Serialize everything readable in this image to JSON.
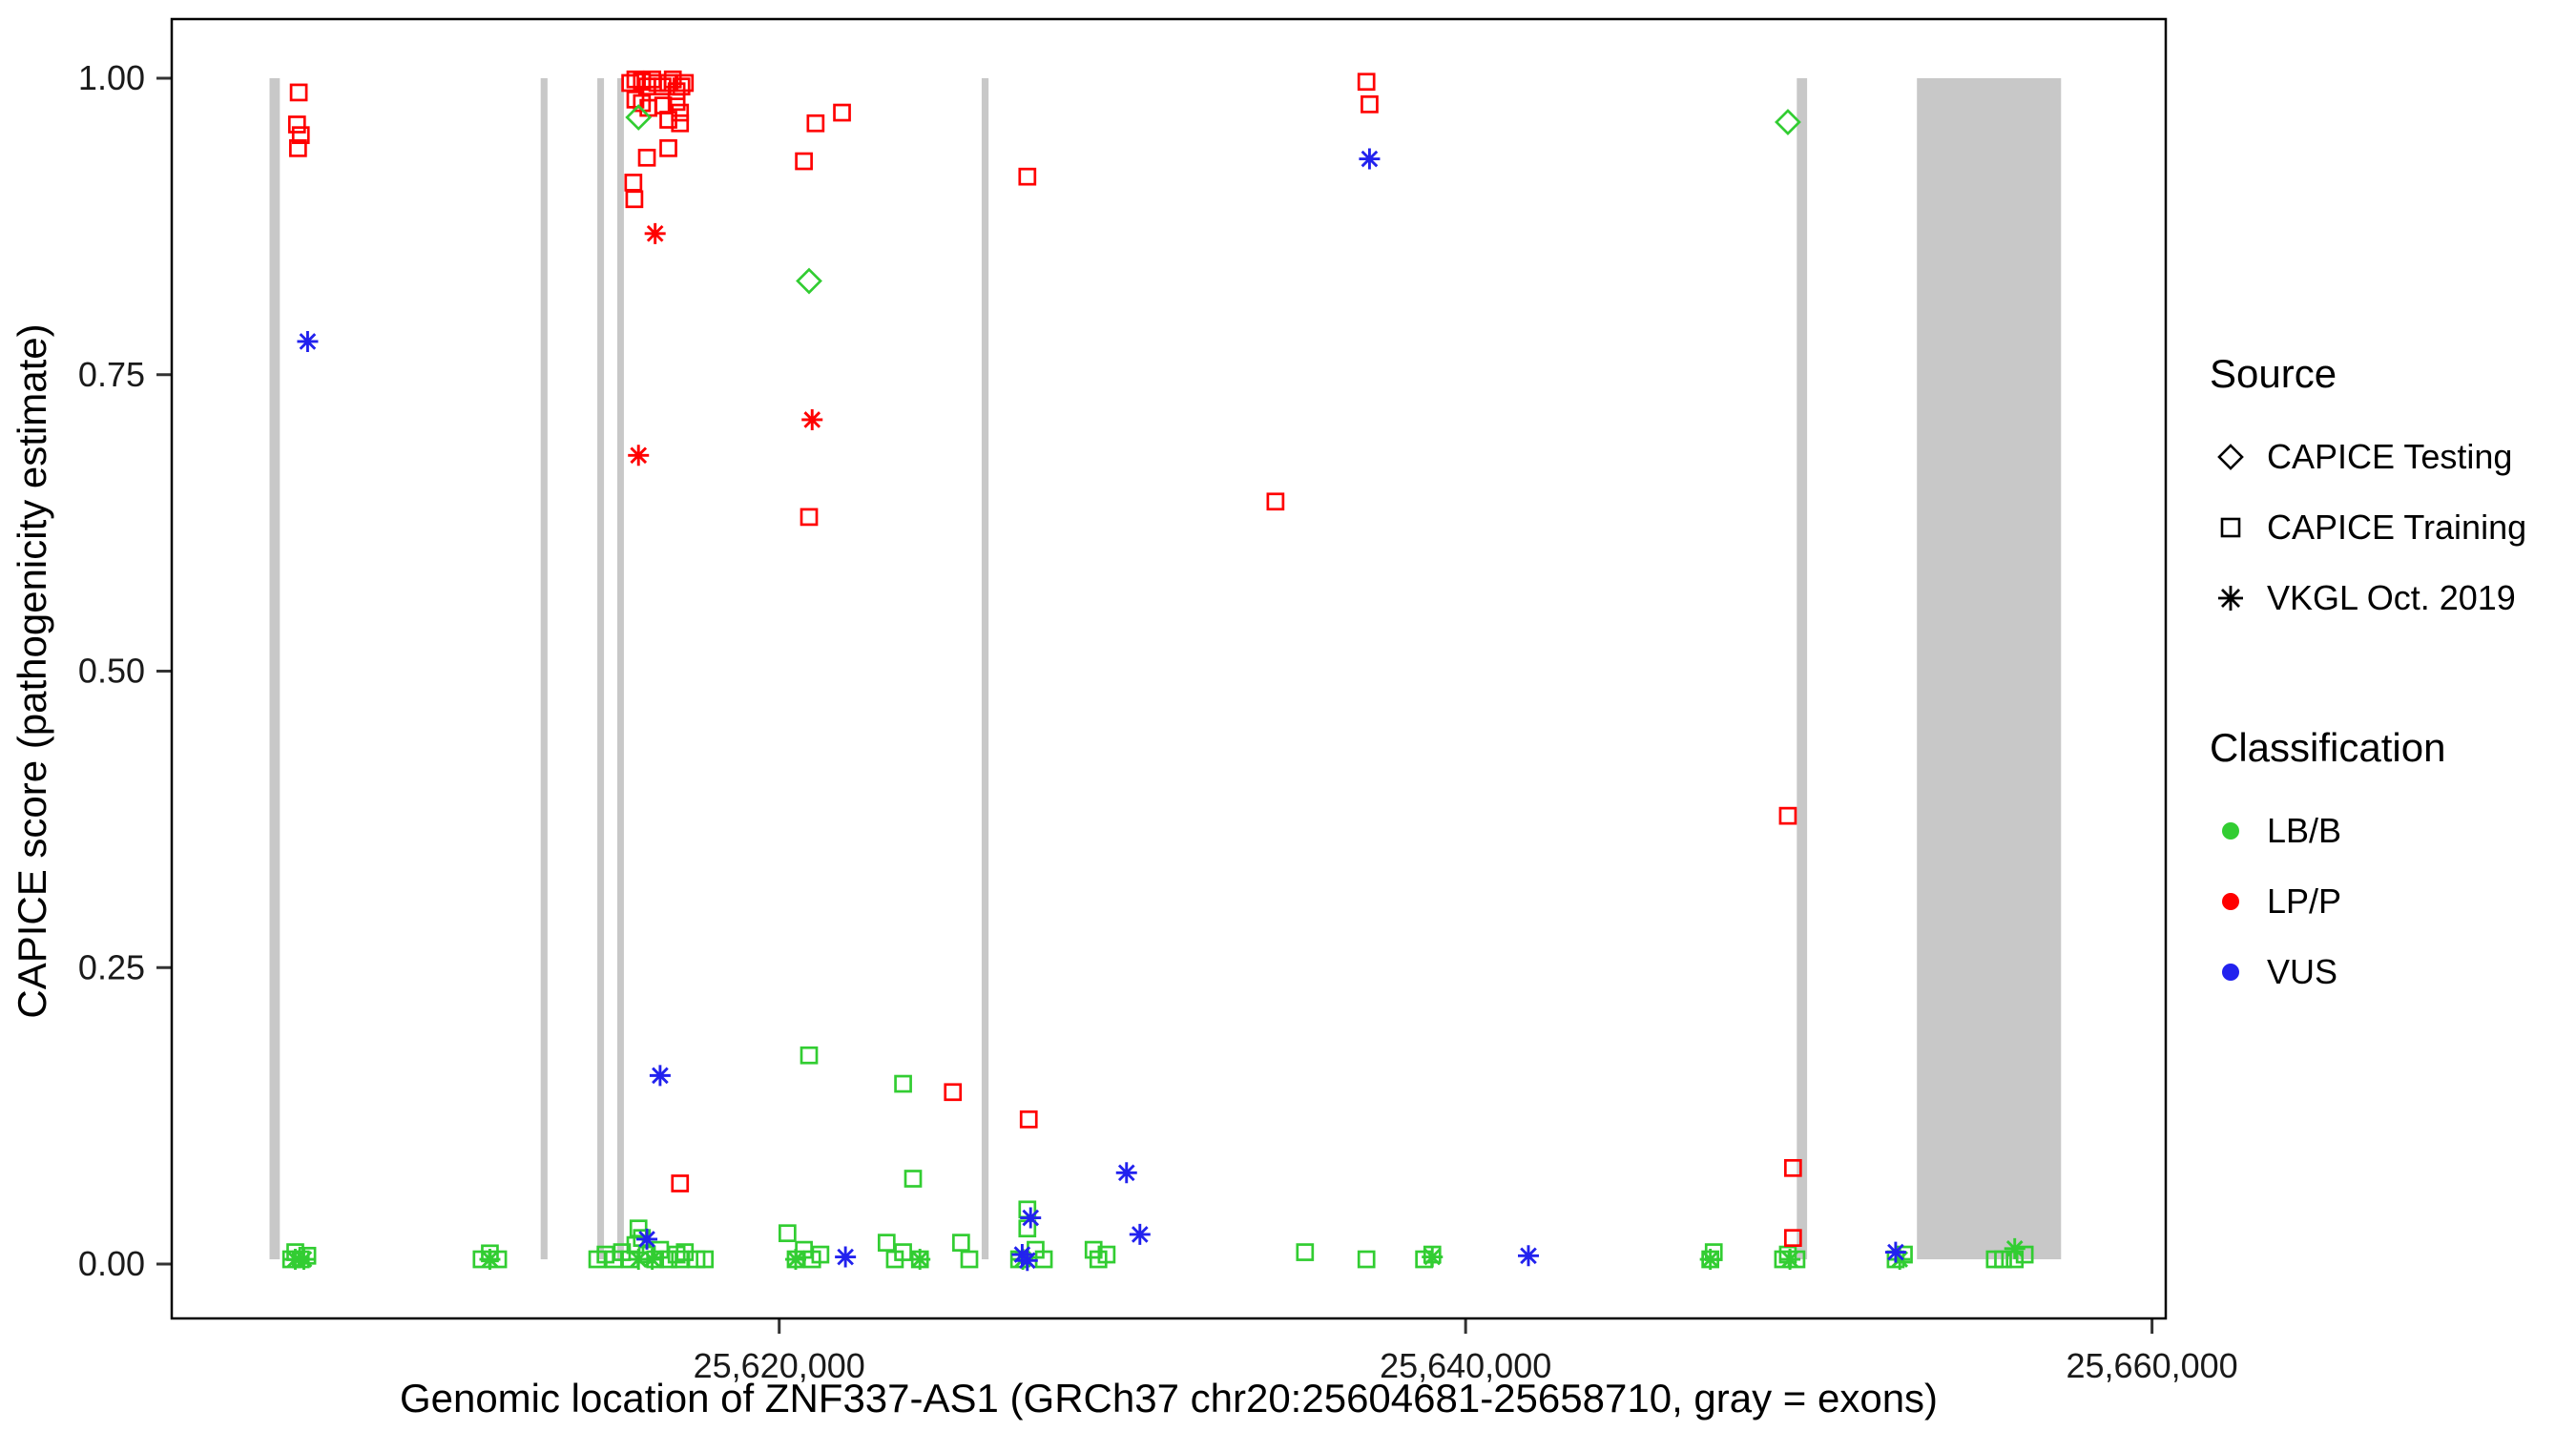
{
  "chart_data": {
    "type": "scatter",
    "title": "",
    "xlabel": "Genomic location of ZNF337-AS1 (GRCh37 chr20:25604681-25658710, gray = exons)",
    "ylabel": "CAPICE score (pathogenicity estimate)",
    "xlim": [
      25602300,
      25660400
    ],
    "ylim": [
      0,
      1
    ],
    "grid": "off",
    "legend_position": "right",
    "x_ticks": [
      {
        "value": 25620000,
        "label": "25,620,000"
      },
      {
        "value": 25640000,
        "label": "25,640,000"
      },
      {
        "value": 25660000,
        "label": "25,660,000"
      }
    ],
    "y_ticks": [
      {
        "value": 0.0,
        "label": "0.00"
      },
      {
        "value": 0.25,
        "label": "0.25"
      },
      {
        "value": 0.5,
        "label": "0.50"
      },
      {
        "value": 0.75,
        "label": "0.75"
      },
      {
        "value": 1.0,
        "label": "1.00"
      }
    ],
    "exon_color": "#C8C8C8",
    "exons": [
      [
        25605150,
        25605450
      ],
      [
        25613050,
        25613250
      ],
      [
        25614700,
        25614850
      ],
      [
        25615280,
        25615430
      ],
      [
        25625900,
        25626100
      ],
      [
        25649650,
        25649950
      ],
      [
        25653150,
        25657350
      ]
    ],
    "series": [
      {
        "name": "LB/B - CAPICE Training",
        "source": "CAPICE Training",
        "classification": "LB/B",
        "marker": "square-open",
        "color": "#32CD32",
        "points": [
          [
            25605780,
            0.004
          ],
          [
            25605900,
            0.01
          ],
          [
            25606060,
            0.004
          ],
          [
            25606250,
            0.007
          ],
          [
            25611330,
            0.004
          ],
          [
            25611570,
            0.009
          ],
          [
            25611810,
            0.004
          ],
          [
            25614700,
            0.004
          ],
          [
            25614940,
            0.008
          ],
          [
            25615180,
            0.004
          ],
          [
            25615420,
            0.01
          ],
          [
            25615660,
            0.004
          ],
          [
            25615810,
            0.016
          ],
          [
            25615900,
            0.03
          ],
          [
            25616000,
            0.022
          ],
          [
            25616145,
            0.008
          ],
          [
            25616385,
            0.004
          ],
          [
            25616530,
            0.012
          ],
          [
            25616770,
            0.004
          ],
          [
            25617010,
            0.008
          ],
          [
            25617110,
            0.004
          ],
          [
            25617250,
            0.01
          ],
          [
            25617590,
            0.004
          ],
          [
            25617830,
            0.004
          ],
          [
            25620240,
            0.026
          ],
          [
            25620480,
            0.004
          ],
          [
            25620720,
            0.012
          ],
          [
            25620960,
            0.004
          ],
          [
            25621200,
            0.008
          ],
          [
            25620870,
            0.176
          ],
          [
            25623130,
            0.018
          ],
          [
            25623370,
            0.004
          ],
          [
            25623610,
            0.152
          ],
          [
            25623610,
            0.01
          ],
          [
            25623900,
            0.072
          ],
          [
            25624100,
            0.004
          ],
          [
            25625300,
            0.018
          ],
          [
            25625540,
            0.004
          ],
          [
            25626990,
            0.004
          ],
          [
            25627230,
            0.046
          ],
          [
            25627230,
            0.03
          ],
          [
            25627470,
            0.012
          ],
          [
            25627710,
            0.004
          ],
          [
            25629160,
            0.012
          ],
          [
            25629300,
            0.004
          ],
          [
            25629540,
            0.008
          ],
          [
            25635320,
            0.01
          ],
          [
            25637110,
            0.004
          ],
          [
            25638790,
            0.004
          ],
          [
            25639030,
            0.008
          ],
          [
            25647130,
            0.004
          ],
          [
            25647230,
            0.01
          ],
          [
            25649250,
            0.004
          ],
          [
            25649390,
            0.008
          ],
          [
            25649640,
            0.004
          ],
          [
            25652530,
            0.004
          ],
          [
            25652770,
            0.008
          ],
          [
            25655420,
            0.004
          ],
          [
            25655660,
            0.004
          ],
          [
            25656000,
            0.004
          ],
          [
            25656290,
            0.008
          ]
        ]
      },
      {
        "name": "LB/B - VKGL Oct. 2019",
        "source": "VKGL Oct. 2019",
        "classification": "LB/B",
        "marker": "asterisk",
        "color": "#32CD32",
        "points": [
          [
            25605900,
            0.004
          ],
          [
            25606150,
            0.004
          ],
          [
            25611570,
            0.004
          ],
          [
            25615900,
            0.004
          ],
          [
            25616300,
            0.004
          ],
          [
            25620480,
            0.004
          ],
          [
            25624100,
            0.004
          ],
          [
            25627100,
            0.004
          ],
          [
            25639030,
            0.006
          ],
          [
            25647130,
            0.004
          ],
          [
            25649450,
            0.004
          ],
          [
            25652650,
            0.004
          ],
          [
            25656000,
            0.013
          ]
        ]
      },
      {
        "name": "LP/P - CAPICE Training",
        "source": "CAPICE Training",
        "classification": "LP/P",
        "marker": "square-open",
        "color": "#FF0000",
        "points": [
          [
            25606000,
            0.988
          ],
          [
            25605950,
            0.961
          ],
          [
            25606060,
            0.952
          ],
          [
            25605980,
            0.941
          ],
          [
            25615660,
            0.996
          ],
          [
            25615810,
            0.999
          ],
          [
            25616000,
            0.997
          ],
          [
            25616150,
            0.993
          ],
          [
            25616300,
            0.999
          ],
          [
            25616450,
            0.996
          ],
          [
            25616600,
            0.993
          ],
          [
            25616770,
            0.996
          ],
          [
            25616900,
            0.999
          ],
          [
            25617010,
            0.989
          ],
          [
            25617150,
            0.993
          ],
          [
            25617250,
            0.996
          ],
          [
            25615810,
            0.982
          ],
          [
            25616000,
            0.979
          ],
          [
            25616190,
            0.975
          ],
          [
            25616620,
            0.977
          ],
          [
            25617010,
            0.98
          ],
          [
            25617110,
            0.971
          ],
          [
            25616770,
            0.965
          ],
          [
            25617110,
            0.962
          ],
          [
            25616145,
            0.933
          ],
          [
            25616770,
            0.941
          ],
          [
            25615750,
            0.912
          ],
          [
            25615780,
            0.898
          ],
          [
            25617110,
            0.068
          ],
          [
            25620720,
            0.93
          ],
          [
            25621060,
            0.962
          ],
          [
            25621830,
            0.971
          ],
          [
            25620870,
            0.63
          ],
          [
            25625060,
            0.145
          ],
          [
            25627230,
            0.917
          ],
          [
            25627270,
            0.122
          ],
          [
            25634460,
            0.643
          ],
          [
            25637110,
            0.997
          ],
          [
            25637200,
            0.978
          ],
          [
            25649390,
            0.378
          ],
          [
            25649540,
            0.081
          ],
          [
            25649540,
            0.022
          ]
        ]
      },
      {
        "name": "LP/P - VKGL Oct. 2019",
        "source": "VKGL Oct. 2019",
        "classification": "LP/P",
        "marker": "asterisk",
        "color": "#FF0000",
        "points": [
          [
            25615900,
            0.682
          ],
          [
            25616385,
            0.869
          ],
          [
            25620960,
            0.712
          ]
        ]
      },
      {
        "name": "VUS - VKGL Oct. 2019",
        "source": "VKGL Oct. 2019",
        "classification": "VUS",
        "marker": "asterisk",
        "color": "#2222EE",
        "points": [
          [
            25606260,
            0.778
          ],
          [
            25637200,
            0.932
          ],
          [
            25616530,
            0.159
          ],
          [
            25616145,
            0.021
          ],
          [
            25627325,
            0.039
          ],
          [
            25627080,
            0.008
          ],
          [
            25630120,
            0.077
          ],
          [
            25630510,
            0.025
          ],
          [
            25621930,
            0.006
          ],
          [
            25641830,
            0.007
          ],
          [
            25652530,
            0.01
          ],
          [
            25627230,
            0.003
          ]
        ]
      },
      {
        "name": "LB/B - CAPICE Testing",
        "source": "CAPICE Testing",
        "classification": "LB/B",
        "marker": "diamond-open",
        "color": "#32CD32",
        "points": [
          [
            25615900,
            0.967
          ],
          [
            25620870,
            0.829
          ],
          [
            25649390,
            0.963
          ]
        ]
      }
    ]
  },
  "legend": {
    "source": {
      "title": "Source",
      "items": [
        {
          "label": "CAPICE Testing",
          "marker": "diamond-open"
        },
        {
          "label": "CAPICE Training",
          "marker": "square-open"
        },
        {
          "label": "VKGL Oct. 2019",
          "marker": "asterisk"
        }
      ]
    },
    "classification": {
      "title": "Classification",
      "items": [
        {
          "label": "LB/B",
          "color": "#32CD32"
        },
        {
          "label": "LP/P",
          "color": "#FF0000"
        },
        {
          "label": "VUS",
          "color": "#2222EE"
        }
      ]
    }
  }
}
